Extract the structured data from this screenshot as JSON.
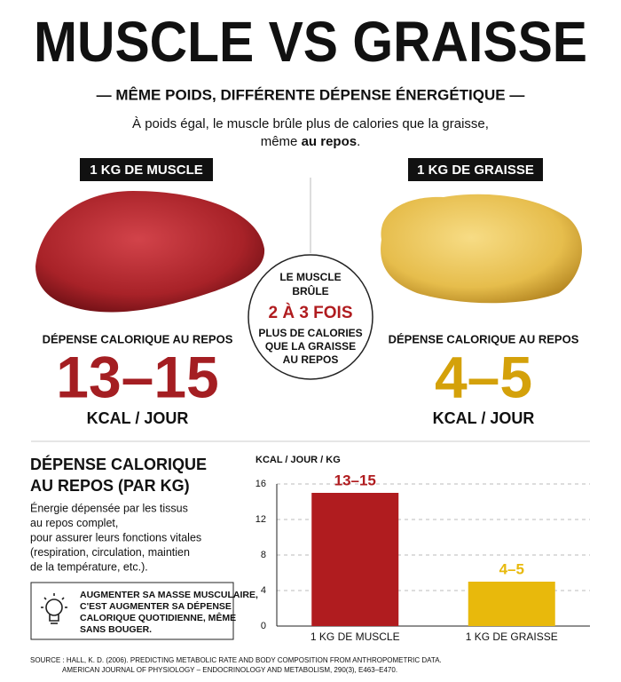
{
  "header": {
    "title": "MUSCLE VS GRAISSE",
    "subtitle": "— MÊME POIDS, DIFFÉRENTE DÉPENSE ÉNERGÉTIQUE —",
    "intro_line1": "À poids égal, le muscle brûle plus de calories que la graisse,",
    "intro_line2_start": "même ",
    "intro_line2_bold": "au repos",
    "intro_line2_end": "."
  },
  "muscle": {
    "tag": "1 KG DE MUSCLE",
    "label": "DÉPENSE CALORIQUE AU REPOS",
    "value": "13–15",
    "unit": "KCAL / JOUR"
  },
  "fat": {
    "tag": "1 KG DE GRAISSE",
    "label": "DÉPENSE CALORIQUE AU REPOS",
    "value": "4–5",
    "unit": "KCAL / JOUR"
  },
  "center": {
    "lines_top": [
      "LE MUSCLE",
      "BRÛLE"
    ],
    "highlight": "2 À 3 FOIS",
    "lines_bottom": [
      "PLUS DE CALORIES",
      "QUE LA GRAISSE",
      "AU REPOS"
    ]
  },
  "side": {
    "title": [
      "DÉPENSE CALORIQUE",
      "AU REPOS (PAR KG)"
    ],
    "description": [
      "Énergie dépensée par les tissus",
      "au repos complet,",
      "pour assurer leurs fonctions vitales",
      "(respiration, circulation, maintien",
      "de la température, etc.)."
    ],
    "tip": [
      "AUGMENTER SA MASSE MUSCULAIRE,",
      "C'EST AUGMENTER SA DÉPENSE",
      "CALORIQUE QUOTIDIENNE, MÊME",
      "SANS BOUGER."
    ]
  },
  "source": [
    "SOURCE : HALL, K. D. (2006). PREDICTING METABOLIC RATE AND BODY COMPOSITION FROM ANTHROPOMETRIC DATA.",
    "AMERICAN JOURNAL OF PHYSIOLOGY – ENDOCRINOLOGY AND METABOLISM, 290(3), E463–E470."
  ],
  "chart_data": {
    "type": "bar",
    "y_label": "KCAL / JOUR / KG",
    "categories": [
      "1 KG DE MUSCLE",
      "1 KG DE GRAISSE"
    ],
    "values": [
      15,
      5
    ],
    "value_labels": [
      "13–15",
      "4–5"
    ],
    "colors": [
      "#b01c1f",
      "#e8b90c"
    ],
    "ylim": [
      0,
      16
    ],
    "yticks": [
      0,
      4,
      8,
      12,
      16
    ],
    "grid": true
  }
}
